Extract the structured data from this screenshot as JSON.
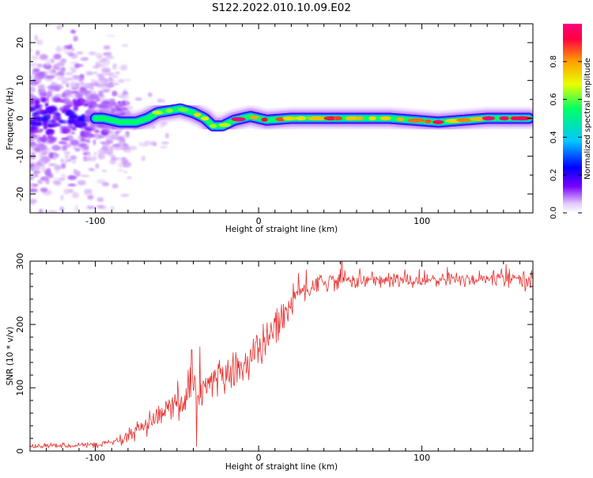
{
  "figure_title": "S122.2022.010.10.09.E02",
  "chart_data": [
    {
      "type": "heatmap",
      "xlabel": "Height of straight line (km)",
      "ylabel": "Frequency (Hz)",
      "xlim": [
        -140,
        168
      ],
      "ylim": [
        -25,
        25
      ],
      "x_ticks": [
        -100,
        0,
        100
      ],
      "y_ticks": [
        -20,
        -10,
        0,
        10,
        20
      ],
      "colorbar": {
        "label": "Normalized spectral amplitude",
        "range": [
          0,
          1
        ],
        "ticks": [
          "0.0",
          "0.2",
          "0.4",
          "0.6",
          "0.8"
        ],
        "colors": [
          "#ffffff",
          "#e2c8f8",
          "#7a00ff",
          "#0000ff",
          "#00c8ff",
          "#00ff66",
          "#e8ff00",
          "#ffa000",
          "#ff0040",
          "#ff0080"
        ]
      },
      "ridge_frequency": [
        {
          "x": -95,
          "y": 0
        },
        {
          "x": -85,
          "y": -1.0
        },
        {
          "x": -75,
          "y": -1.0
        },
        {
          "x": -68,
          "y": 0
        },
        {
          "x": -62,
          "y": 1.5
        },
        {
          "x": -55,
          "y": 2.0
        },
        {
          "x": -48,
          "y": 2.5
        },
        {
          "x": -40,
          "y": 1.5
        },
        {
          "x": -33,
          "y": 0
        },
        {
          "x": -28,
          "y": -2.0
        },
        {
          "x": -22,
          "y": -2.0
        },
        {
          "x": -15,
          "y": -0.5
        },
        {
          "x": -5,
          "y": 0.5
        },
        {
          "x": 5,
          "y": -0.5
        },
        {
          "x": 20,
          "y": 0
        },
        {
          "x": 40,
          "y": 0
        },
        {
          "x": 60,
          "y": 0
        },
        {
          "x": 80,
          "y": 0
        },
        {
          "x": 95,
          "y": -0.5
        },
        {
          "x": 110,
          "y": -1.0
        },
        {
          "x": 125,
          "y": -0.5
        },
        {
          "x": 140,
          "y": 0
        },
        {
          "x": 165,
          "y": 0
        }
      ]
    },
    {
      "type": "line",
      "xlabel": "Height of straight line (km)",
      "ylabel": "SNR (10 * v/v)",
      "xlim": [
        -140,
        168
      ],
      "ylim": [
        0,
        300
      ],
      "x_ticks": [
        -100,
        0,
        100
      ],
      "y_ticks": [
        0,
        100,
        200,
        300
      ],
      "color": "#e8312f",
      "series_trend": [
        {
          "x": -140,
          "y": 8
        },
        {
          "x": -120,
          "y": 9
        },
        {
          "x": -100,
          "y": 10
        },
        {
          "x": -85,
          "y": 15
        },
        {
          "x": -75,
          "y": 30
        },
        {
          "x": -65,
          "y": 45
        },
        {
          "x": -55,
          "y": 65
        },
        {
          "x": -45,
          "y": 80
        },
        {
          "x": -35,
          "y": 100
        },
        {
          "x": -25,
          "y": 115
        },
        {
          "x": -15,
          "y": 125
        },
        {
          "x": -5,
          "y": 145
        },
        {
          "x": 5,
          "y": 175
        },
        {
          "x": 15,
          "y": 215
        },
        {
          "x": 25,
          "y": 250
        },
        {
          "x": 35,
          "y": 265
        },
        {
          "x": 50,
          "y": 270
        },
        {
          "x": 80,
          "y": 270
        },
        {
          "x": 100,
          "y": 270
        },
        {
          "x": 130,
          "y": 272
        },
        {
          "x": 168,
          "y": 272
        }
      ],
      "spikes": [
        {
          "x": -41,
          "y": 160
        },
        {
          "x": -38,
          "y": 7
        },
        {
          "x": -36,
          "y": 165
        },
        {
          "x": 51,
          "y": 300
        }
      ]
    }
  ]
}
